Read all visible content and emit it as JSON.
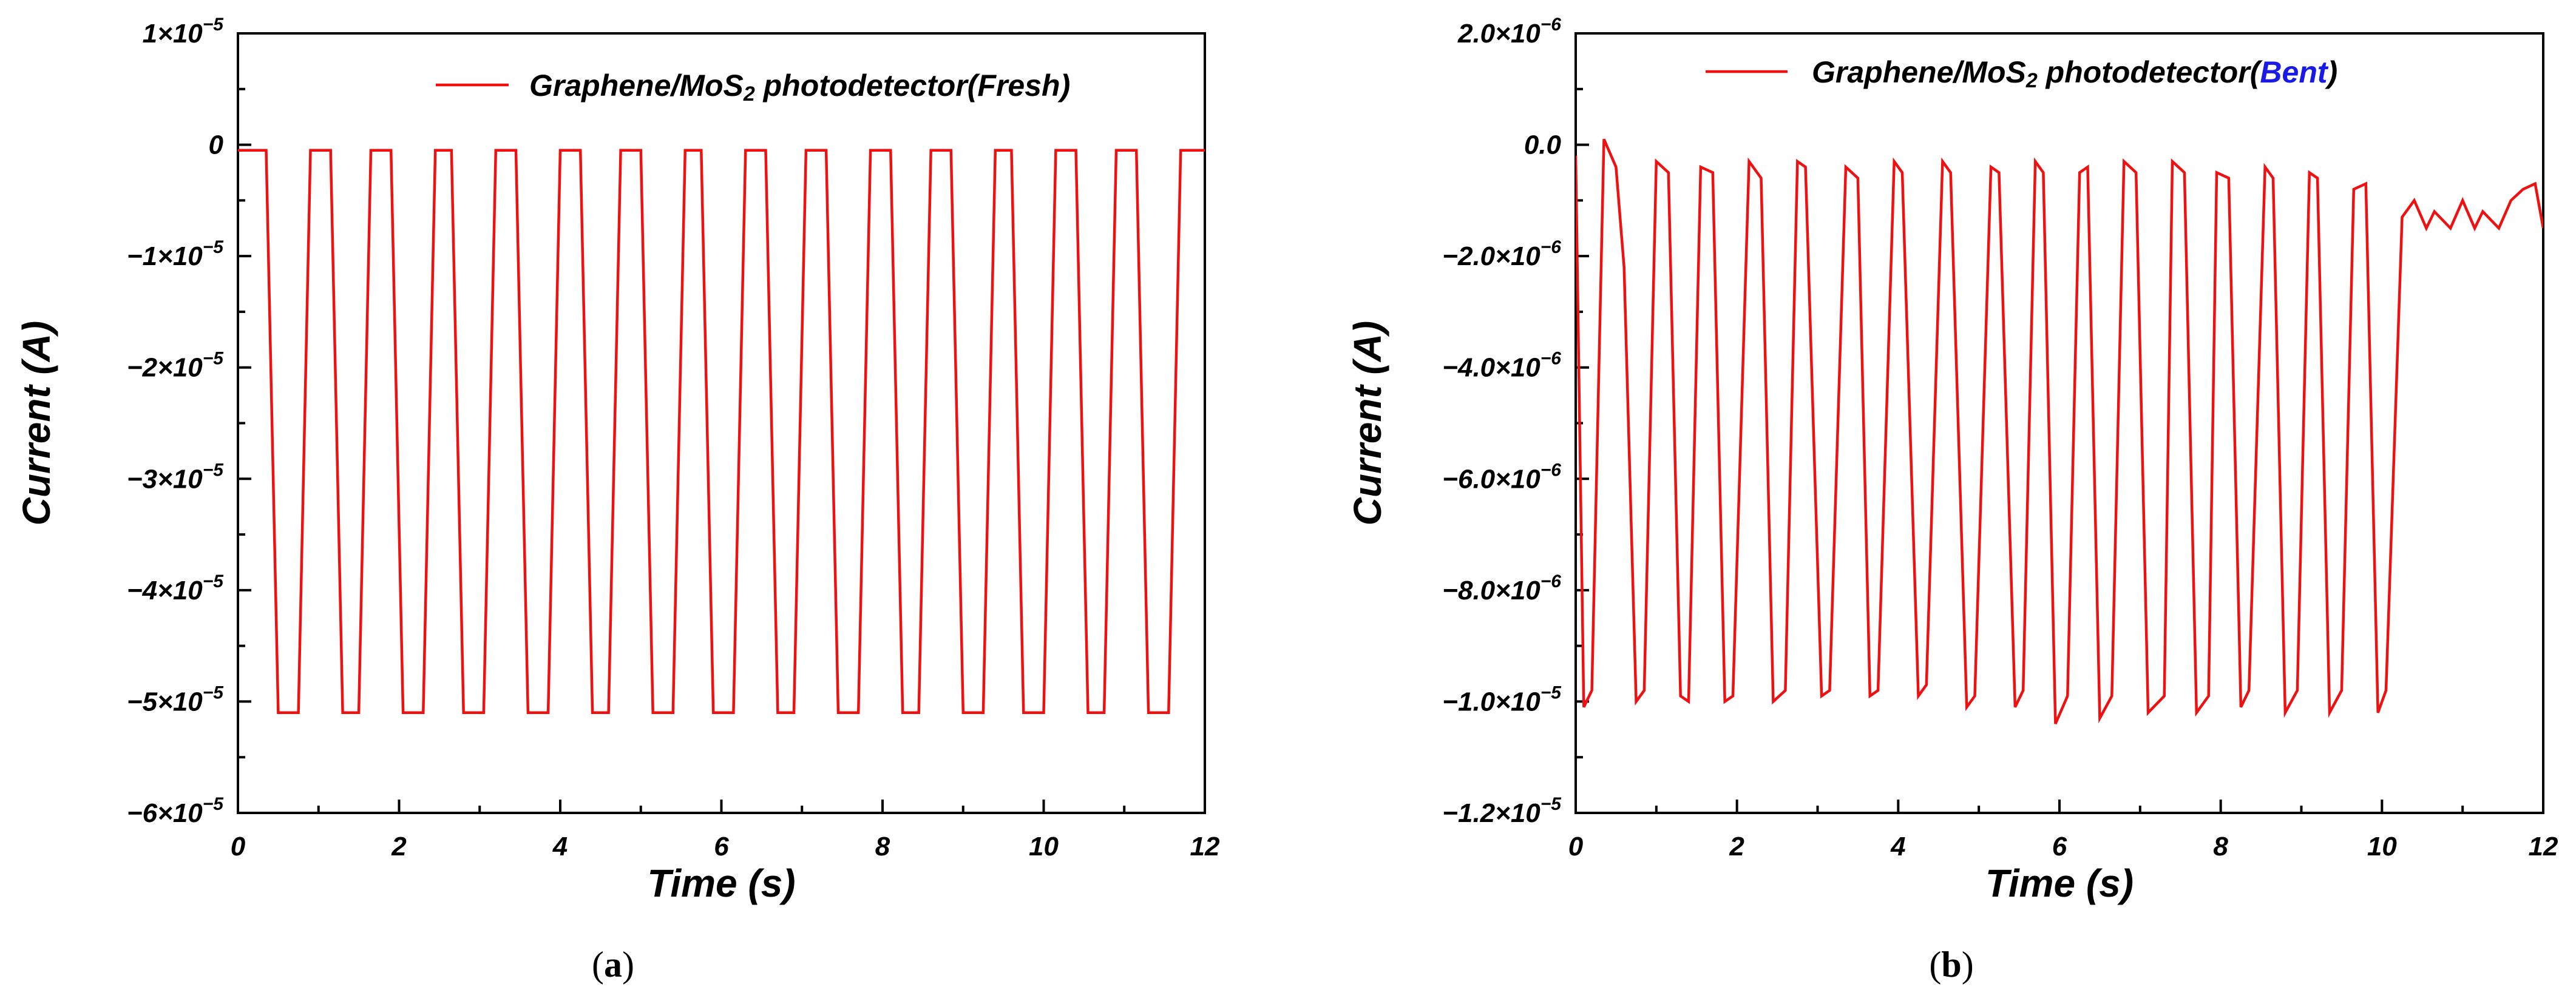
{
  "chart_data": [
    {
      "id": "a",
      "type": "line",
      "caption": {
        "open": "(",
        "letter": "a",
        "close": ")"
      },
      "xlabel": "Time (s)",
      "ylabel": "Current (A)",
      "xlim": [
        0,
        12
      ],
      "ylim": [
        -6e-05,
        1e-05
      ],
      "xticks": [
        0,
        2,
        4,
        6,
        8,
        10,
        12
      ],
      "xtick_labels": [
        "0",
        "2",
        "4",
        "6",
        "8",
        "10",
        "12"
      ],
      "yticks": [
        1e-05,
        0,
        -1e-05,
        -2e-05,
        -3e-05,
        -4e-05,
        -5e-05,
        -6e-05
      ],
      "ytick_labels": [
        {
          "mant": "1×10",
          "exp": "−5"
        },
        {
          "mant": "0",
          "exp": ""
        },
        {
          "mant": "−1×10",
          "exp": "−5"
        },
        {
          "mant": "−2×10",
          "exp": "−5"
        },
        {
          "mant": "−3×10",
          "exp": "−5"
        },
        {
          "mant": "−4×10",
          "exp": "−5"
        },
        {
          "mant": "−5×10",
          "exp": "−5"
        },
        {
          "mant": "−6×10",
          "exp": "−5"
        }
      ],
      "legend": {
        "pre": "Graphene/MoS",
        "sub": "2",
        "post": " photodetector(",
        "state": "Fresh",
        "end": ")",
        "state_color": "#000000",
        "position": "top-right"
      },
      "series": [
        {
          "name": "Graphene/MoS2 photodetector(Fresh)",
          "color": "#ee1111",
          "x": [
            0,
            0.35,
            0.5,
            0.75,
            0.9,
            1.15,
            1.3,
            1.5,
            1.65,
            1.9,
            2.05,
            2.3,
            2.45,
            2.65,
            2.8,
            3.05,
            3.2,
            3.45,
            3.6,
            3.85,
            4.0,
            4.25,
            4.4,
            4.6,
            4.75,
            5.0,
            5.15,
            5.4,
            5.55,
            5.75,
            5.9,
            6.15,
            6.3,
            6.55,
            6.7,
            6.9,
            7.05,
            7.3,
            7.45,
            7.7,
            7.85,
            8.1,
            8.25,
            8.45,
            8.6,
            8.85,
            9.0,
            9.25,
            9.4,
            9.6,
            9.75,
            10.0,
            10.15,
            10.4,
            10.55,
            10.75,
            10.9,
            11.15,
            11.3,
            11.55,
            11.7,
            12.0
          ],
          "y": [
            -5e-07,
            -5e-07,
            -5.1e-05,
            -5.1e-05,
            -5e-07,
            -5e-07,
            -5.1e-05,
            -5.1e-05,
            -5e-07,
            -5e-07,
            -5.1e-05,
            -5.1e-05,
            -5e-07,
            -5e-07,
            -5.1e-05,
            -5.1e-05,
            -5e-07,
            -5e-07,
            -5.1e-05,
            -5.1e-05,
            -5e-07,
            -5e-07,
            -5.1e-05,
            -5.1e-05,
            -5e-07,
            -5e-07,
            -5.1e-05,
            -5.1e-05,
            -5e-07,
            -5e-07,
            -5.1e-05,
            -5.1e-05,
            -5e-07,
            -5e-07,
            -5.1e-05,
            -5.1e-05,
            -5e-07,
            -5e-07,
            -5.1e-05,
            -5.1e-05,
            -5e-07,
            -5e-07,
            -5.1e-05,
            -5.1e-05,
            -5e-07,
            -5e-07,
            -5.1e-05,
            -5.1e-05,
            -5e-07,
            -5e-07,
            -5.1e-05,
            -5.1e-05,
            -5e-07,
            -5e-07,
            -5.1e-05,
            -5.1e-05,
            -5e-07,
            -5e-07,
            -5.1e-05,
            -5.1e-05,
            -5e-07,
            -5e-07
          ]
        }
      ]
    },
    {
      "id": "b",
      "type": "line",
      "caption": {
        "open": "(",
        "letter": "b",
        "close": ")"
      },
      "xlabel": "Time (s)",
      "ylabel": "Current (A)",
      "xlim": [
        0,
        12
      ],
      "ylim": [
        -1.2e-05,
        2e-06
      ],
      "xticks": [
        0,
        2,
        4,
        6,
        8,
        10,
        12
      ],
      "xtick_labels": [
        "0",
        "2",
        "4",
        "6",
        "8",
        "10",
        "12"
      ],
      "yticks": [
        2e-06,
        0,
        -2e-06,
        -4e-06,
        -6e-06,
        -8e-06,
        -1e-05,
        -1.2e-05
      ],
      "ytick_labels": [
        {
          "mant": "2.0×10",
          "exp": "−6"
        },
        {
          "mant": "0.0",
          "exp": ""
        },
        {
          "mant": "−2.0×10",
          "exp": "−6"
        },
        {
          "mant": "−4.0×10",
          "exp": "−6"
        },
        {
          "mant": "−6.0×10",
          "exp": "−6"
        },
        {
          "mant": "−8.0×10",
          "exp": "−6"
        },
        {
          "mant": "−1.0×10",
          "exp": "−5"
        },
        {
          "mant": "−1.2×10",
          "exp": "−5"
        }
      ],
      "legend": {
        "pre": "Graphene/MoS",
        "sub": "2",
        "post": " photodetector(",
        "state": "Bent",
        "end": ")",
        "state_color": "#1a1ae6",
        "position": "top-right"
      },
      "series": [
        {
          "name": "Graphene/MoS2 photodetector(Bent)",
          "color": "#ee1111",
          "x": [
            0,
            0.1,
            0.2,
            0.35,
            0.5,
            0.6,
            0.75,
            0.85,
            1.0,
            1.15,
            1.3,
            1.4,
            1.55,
            1.7,
            1.85,
            1.95,
            2.15,
            2.3,
            2.45,
            2.6,
            2.75,
            2.85,
            3.05,
            3.15,
            3.35,
            3.5,
            3.65,
            3.75,
            3.95,
            4.05,
            4.25,
            4.35,
            4.55,
            4.65,
            4.85,
            4.95,
            5.15,
            5.25,
            5.45,
            5.55,
            5.7,
            5.8,
            5.95,
            6.1,
            6.25,
            6.35,
            6.5,
            6.65,
            6.8,
            6.95,
            7.1,
            7.3,
            7.4,
            7.55,
            7.7,
            7.85,
            7.95,
            8.1,
            8.25,
            8.35,
            8.55,
            8.65,
            8.8,
            8.95,
            9.1,
            9.2,
            9.35,
            9.5,
            9.65,
            9.8,
            9.95,
            10.05,
            10.25,
            10.4,
            10.55,
            10.65,
            10.85,
            11.0,
            11.15,
            11.25,
            11.45,
            11.6,
            11.75,
            11.9,
            12.0
          ],
          "y": [
            -2e-07,
            -1.01e-05,
            -9.8e-06,
            1e-07,
            -4e-07,
            -2.2e-06,
            -1e-05,
            -9.8e-06,
            -3e-07,
            -5e-07,
            -9.9e-06,
            -1e-05,
            -4e-07,
            -5e-07,
            -1e-05,
            -9.9e-06,
            -3e-07,
            -6e-07,
            -1e-05,
            -9.8e-06,
            -3e-07,
            -4e-07,
            -9.9e-06,
            -9.8e-06,
            -4e-07,
            -6e-07,
            -9.9e-06,
            -9.8e-06,
            -3e-07,
            -5e-07,
            -9.9e-06,
            -9.7e-06,
            -3e-07,
            -5e-07,
            -1.01e-05,
            -9.9e-06,
            -4e-07,
            -5e-07,
            -1.01e-05,
            -9.8e-06,
            -3e-07,
            -5e-07,
            -1.04e-05,
            -9.9e-06,
            -5e-07,
            -4e-07,
            -1.03e-05,
            -9.9e-06,
            -3e-07,
            -5e-07,
            -1.02e-05,
            -9.9e-06,
            -3e-07,
            -5e-07,
            -1.02e-05,
            -9.9e-06,
            -5e-07,
            -6e-07,
            -1.01e-05,
            -9.8e-06,
            -4e-07,
            -6e-07,
            -1.02e-05,
            -9.8e-06,
            -5e-07,
            -6e-07,
            -1.02e-05,
            -9.8e-06,
            -8e-07,
            -7e-07,
            -1.02e-05,
            -9.8e-06,
            -1.3e-06,
            -1e-06,
            -1.5e-06,
            -1.2e-06,
            -1.5e-06,
            -1e-06,
            -1.5e-06,
            -1.2e-06,
            -1.5e-06,
            -1e-06,
            -8e-07,
            -7e-07,
            -1.5e-06
          ]
        }
      ]
    }
  ]
}
